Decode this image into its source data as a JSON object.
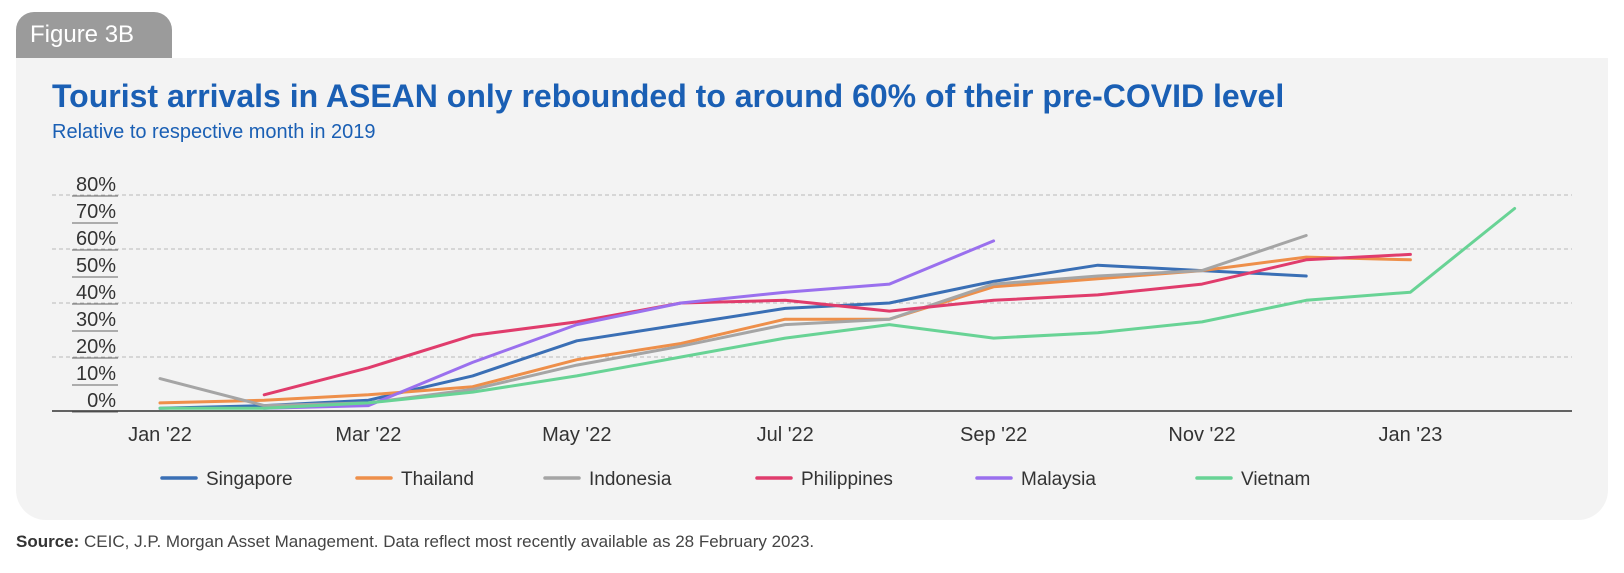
{
  "tab": {
    "label": "Figure 3B"
  },
  "source": {
    "label": "Source:",
    "text": "CEIC, J.P. Morgan Asset Management. Data reflect most recently available as 28 February 2023."
  },
  "chart_data": {
    "type": "line",
    "title": "Tourist arrivals in ASEAN only rebounded to around 60% of their pre-COVID level",
    "subtitle": "Relative to respective month in 2019",
    "xlabel": "",
    "ylabel": "",
    "x": [
      "Jan 2022",
      "Feb 2022",
      "Mar 2022",
      "Apr 2022",
      "May 2022",
      "Jun 2022",
      "Jul 2022",
      "Aug 2022",
      "Sep 2022",
      "Oct 2022",
      "Nov 2022",
      "Dec 2022",
      "Jan 2023",
      "Feb 2023"
    ],
    "x_tick_labels": [
      "Jan '22",
      "Mar '22",
      "May '22",
      "Jul '22",
      "Sep '22",
      "Nov '22",
      "Jan '23"
    ],
    "y_tick_labels": [
      "0%",
      "10%",
      "20%",
      "30%",
      "40%",
      "50%",
      "60%",
      "70%",
      "80%"
    ],
    "ylim": [
      0,
      80
    ],
    "grid": "horizontal dashed",
    "legend_position": "bottom",
    "series": [
      {
        "name": "Singapore",
        "color": "#3a6fb5",
        "values": [
          1,
          2,
          4,
          13,
          26,
          32,
          38,
          40,
          48,
          54,
          52,
          50,
          null,
          null
        ]
      },
      {
        "name": "Thailand",
        "color": "#ee8f4a",
        "values": [
          3,
          4,
          6,
          9,
          19,
          25,
          34,
          34,
          46,
          49,
          52,
          57,
          56,
          null
        ]
      },
      {
        "name": "Indonesia",
        "color": "#a5a5a5",
        "values": [
          12,
          2,
          3,
          8,
          17,
          24,
          32,
          34,
          47,
          50,
          52,
          65,
          null,
          null
        ]
      },
      {
        "name": "Philippines",
        "color": "#e03c6c",
        "values": [
          null,
          6,
          16,
          28,
          33,
          40,
          41,
          37,
          41,
          43,
          47,
          56,
          58,
          null
        ]
      },
      {
        "name": "Malaysia",
        "color": "#9a70ee",
        "values": [
          null,
          1,
          2,
          18,
          32,
          40,
          44,
          47,
          63,
          null,
          null,
          null,
          null,
          null
        ]
      },
      {
        "name": "Vietnam",
        "color": "#68d395",
        "values": [
          1,
          1,
          3,
          7,
          13,
          20,
          27,
          32,
          27,
          29,
          33,
          41,
          44,
          75
        ]
      }
    ]
  }
}
